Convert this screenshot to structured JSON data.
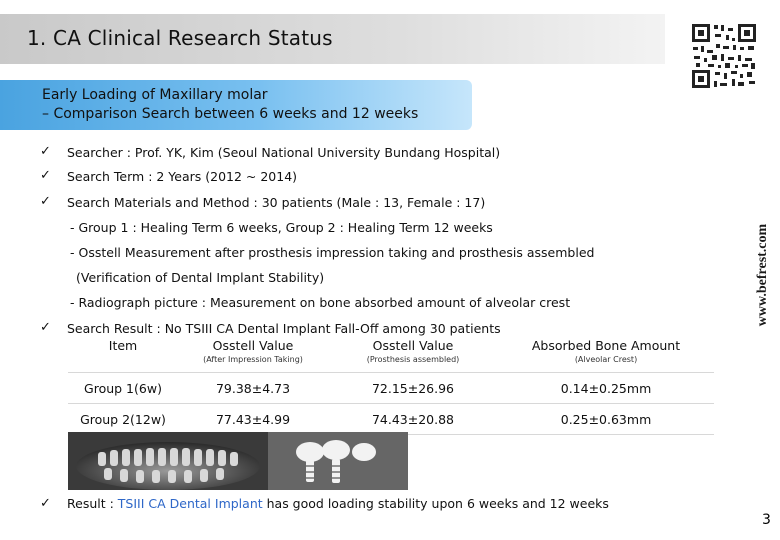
{
  "header": {
    "title": "1. CA Clinical Research Status"
  },
  "subtitle": {
    "line1": "Early Loading of Maxillary molar",
    "line2": "– Comparison Search between 6 weeks and 12 weeks"
  },
  "watermark": {
    "text": "www.befrest.com"
  },
  "bullets": {
    "check_glyph": "✓",
    "searcher": "Searcher : Prof. YK, Kim (Seoul National University Bundang Hospital)",
    "search_term": "Search Term : 2 Years (2012 ~ 2014)",
    "materials": "Search Materials and Method : 30 patients (Male : 13, Female : 17)",
    "group_line": "- Group 1 : Healing Term 6 weeks, Group 2 : Healing Term 12 weeks",
    "osstell_line": "- Osstell Measurement after prosthesis impression taking and prosthesis assembled",
    "verification": "(Verification of  Dental Implant Stability)",
    "radiograph": "- Radiograph picture : Measurement on bone absorbed amount of alveolar crest",
    "search_result": "Search Result :  No TSIII CA Dental Implant Fall-Off among 30 patients"
  },
  "table": {
    "headers": [
      "Item",
      "Osstell Value",
      "Osstell Value",
      "Absorbed Bone Amount"
    ],
    "subheaders": [
      "",
      "(After Impression Taking)",
      "(Prosthesis assembled)",
      "(Alveolar Crest)"
    ],
    "rows": [
      [
        "Group 1(6w)",
        "79.38±4.73",
        "72.15±26.96",
        "0.14±0.25mm"
      ],
      [
        "Group 2(12w)",
        "77.43±4.99",
        "74.43±20.88",
        "0.25±0.63mm"
      ]
    ]
  },
  "result": {
    "prefix": "Result : ",
    "highlight": "TSIII CA Dental Implant",
    "suffix": " has good loading stability upon 6 weeks and 12 weeks",
    "highlight_color": "#2e67c8"
  },
  "page_number": "3",
  "colors": {
    "title_bar": "#d0d0d0",
    "subtitle_box": "#5fb0e8"
  },
  "icons": [
    "qr-code-icon",
    "xray-image",
    "check-icon"
  ]
}
